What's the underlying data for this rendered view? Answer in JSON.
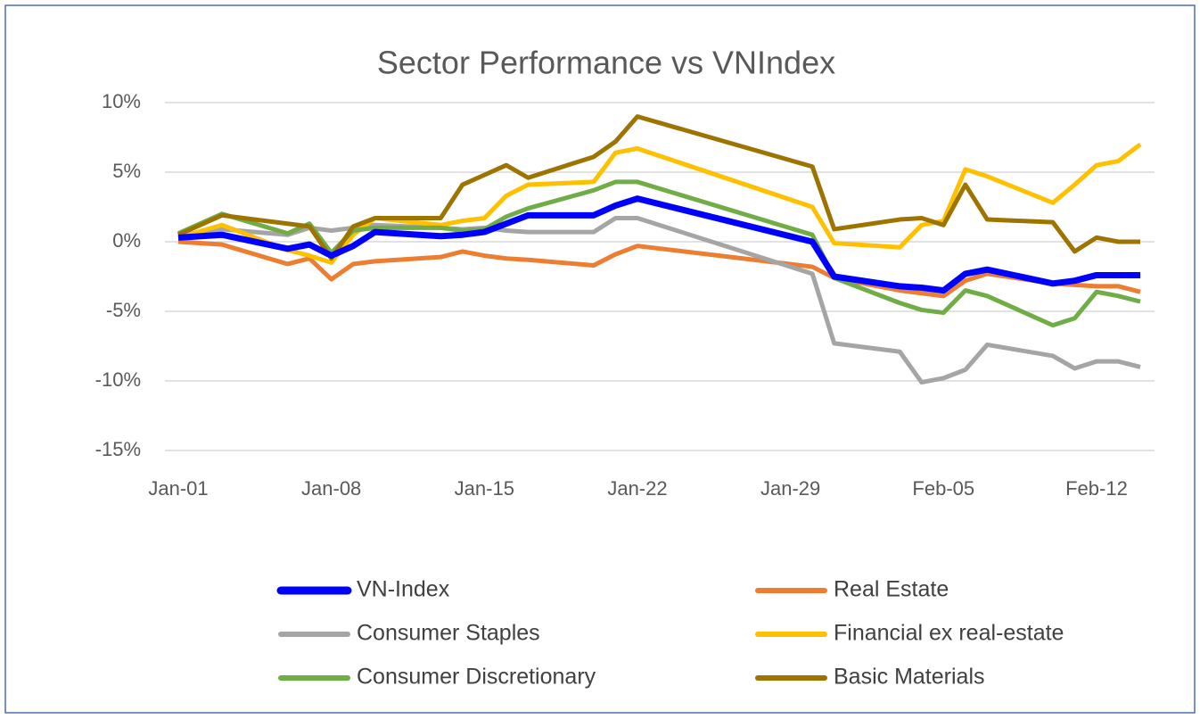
{
  "chart_data": {
    "type": "line",
    "title": "Sector Performance vs VNIndex",
    "x": [
      1,
      3,
      6,
      7,
      8,
      9,
      10,
      13,
      14,
      15,
      16,
      17,
      20,
      21,
      22,
      30,
      31,
      34,
      35,
      36,
      37,
      38,
      41,
      42,
      43,
      44,
      45
    ],
    "xlim": [
      1,
      45
    ],
    "xticks": [
      {
        "value": 1,
        "label": "Jan-01"
      },
      {
        "value": 8,
        "label": "Jan-08"
      },
      {
        "value": 15,
        "label": "Jan-15"
      },
      {
        "value": 22,
        "label": "Jan-22"
      },
      {
        "value": 29,
        "label": "Jan-29"
      },
      {
        "value": 36,
        "label": "Feb-05"
      },
      {
        "value": 43,
        "label": "Feb-12"
      }
    ],
    "ylim": [
      -15,
      10
    ],
    "yticks": [
      {
        "value": 10,
        "label": "10%"
      },
      {
        "value": 5,
        "label": "5%"
      },
      {
        "value": 0,
        "label": "0%"
      },
      {
        "value": -5,
        "label": "-5%"
      },
      {
        "value": -10,
        "label": "-10%"
      },
      {
        "value": -15,
        "label": "-15%"
      }
    ],
    "grid": true,
    "legend": "bottom",
    "series": [
      {
        "name": "VN-Index",
        "color": "#0000ff",
        "values": [
          0.3,
          0.5,
          -0.5,
          -0.2,
          -1.0,
          -0.3,
          0.7,
          0.4,
          0.5,
          0.7,
          1.3,
          1.9,
          1.9,
          2.6,
          3.1,
          0.0,
          -2.5,
          -3.2,
          -3.3,
          -3.5,
          -2.3,
          -2.0,
          -3.0,
          -2.8,
          -2.4,
          -2.4,
          -2.4
        ]
      },
      {
        "name": "Real Estate",
        "color": "#ed7d31",
        "values": [
          0,
          -0.2,
          -1.6,
          -1.2,
          -2.7,
          -1.6,
          -1.4,
          -1.1,
          -0.7,
          -1.0,
          -1.2,
          -1.3,
          -1.7,
          -0.9,
          -0.3,
          -1.8,
          -2.6,
          -3.5,
          -3.7,
          -3.9,
          -2.8,
          -2.3,
          -3.0,
          -3.1,
          -3.2,
          -3.2,
          -3.6
        ]
      },
      {
        "name": "Consumer Staples",
        "color": "#a5a5a5",
        "values": [
          0.3,
          0.9,
          0.5,
          1.0,
          0.8,
          1.0,
          1.2,
          1.0,
          0.9,
          1.0,
          0.8,
          0.7,
          0.7,
          1.7,
          1.7,
          -2.3,
          -7.3,
          -7.9,
          -10.1,
          -9.8,
          -9.2,
          -7.4,
          -8.2,
          -9.1,
          -8.6,
          -8.6,
          -9.0
        ]
      },
      {
        "name": "Financial ex real-estate",
        "color": "#ffc000",
        "values": [
          0.3,
          1.2,
          -0.6,
          -1.0,
          -1.5,
          0.5,
          1.7,
          1.2,
          1.5,
          1.7,
          3.3,
          4.1,
          4.3,
          6.4,
          6.7,
          2.5,
          -0.1,
          -0.4,
          1.2,
          1.5,
          5.2,
          4.7,
          2.8,
          4.1,
          5.5,
          5.8,
          7.0
        ]
      },
      {
        "name": "Consumer Discretionary",
        "color": "#70ad47",
        "values": [
          0.6,
          2.0,
          0.6,
          1.3,
          -0.8,
          0.8,
          1.0,
          1.0,
          0.8,
          0.9,
          1.8,
          2.4,
          3.7,
          4.3,
          4.3,
          0.5,
          -2.6,
          -4.4,
          -4.9,
          -5.1,
          -3.5,
          -3.9,
          -6.0,
          -5.5,
          -3.6,
          -3.9,
          -4.3
        ]
      },
      {
        "name": "Basic Materials",
        "color": "#9e7400",
        "values": [
          0.5,
          1.9,
          1.3,
          1.1,
          -1.2,
          1.1,
          1.7,
          1.7,
          4.1,
          4.8,
          5.5,
          4.6,
          6.1,
          7.2,
          9.0,
          5.4,
          0.9,
          1.6,
          1.7,
          1.2,
          4.1,
          1.6,
          1.4,
          -0.7,
          0.3,
          0.0,
          0.0
        ]
      }
    ]
  }
}
